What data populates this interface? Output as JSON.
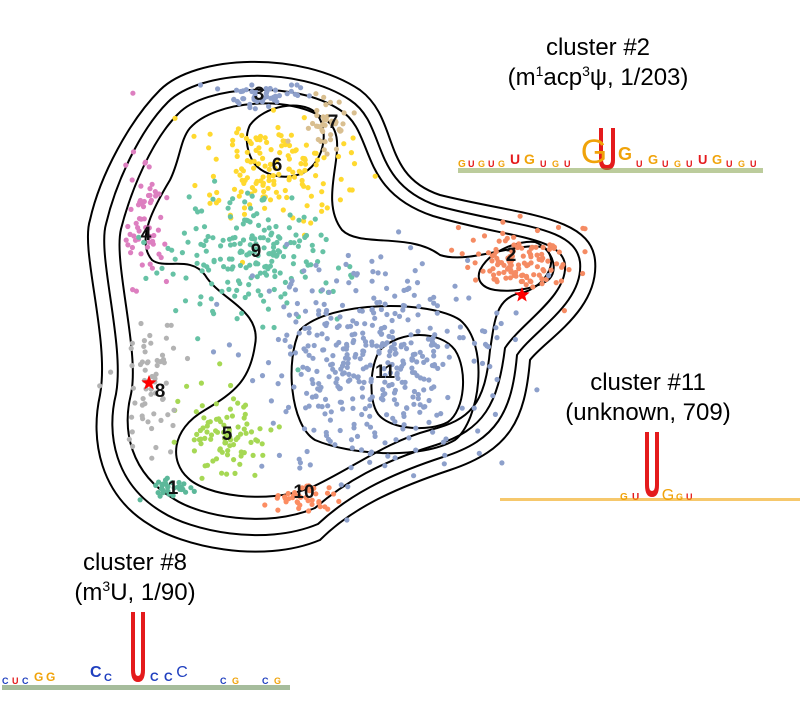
{
  "chart_data": {
    "type": "scatter",
    "title": "",
    "xlabel": "",
    "ylabel": "",
    "description_of_marks": "2D embedding of points colored by cluster with density contour lines",
    "clusters": [
      {
        "id": "1",
        "color": "#5cb89a"
      },
      {
        "id": "2",
        "color": "#f58b63"
      },
      {
        "id": "3",
        "color": "#8ea0cb"
      },
      {
        "id": "4",
        "color": "#dd7fc0"
      },
      {
        "id": "5",
        "color": "#a6d854"
      },
      {
        "id": "6",
        "color": "#ffd92f"
      },
      {
        "id": "7",
        "color": "#d9bf90"
      },
      {
        "id": "8",
        "color": "#b3b3b3"
      },
      {
        "id": "9",
        "color": "#66c2a5"
      },
      {
        "id": "10",
        "color": "#fc8d62"
      },
      {
        "id": "11",
        "color": "#8da0cb"
      }
    ],
    "markers": [
      {
        "symbol": "star",
        "color": "#ff0000",
        "near_cluster": "2"
      },
      {
        "symbol": "star",
        "color": "#ff0000",
        "near_cluster": "8"
      }
    ],
    "annotations": [
      {
        "cluster": "2",
        "line1": "cluster #2",
        "line2_parts": [
          "(m",
          "1",
          "acp",
          "3",
          "ψ, 1/203)"
        ]
      },
      {
        "cluster": "11",
        "line1": "cluster #11",
        "line2_parts": [
          "(unknown, 709)"
        ]
      },
      {
        "cluster": "8",
        "line1": "cluster #8",
        "line2_parts": [
          "(m",
          "3",
          "U, 1/90)"
        ]
      }
    ],
    "logos": [
      {
        "cluster": "2",
        "highlight": "U",
        "highlight_color": "#e41a1c",
        "accent": "G",
        "accent_color": "#f0a30a"
      },
      {
        "cluster": "11",
        "highlight": "U",
        "highlight_color": "#e41a1c",
        "accent": "G",
        "accent_color": "#f0a30a"
      },
      {
        "cluster": "8",
        "highlight": "U",
        "highlight_color": "#e41a1c",
        "accent": "C",
        "accent_color": "#1f3fbf"
      }
    ]
  }
}
